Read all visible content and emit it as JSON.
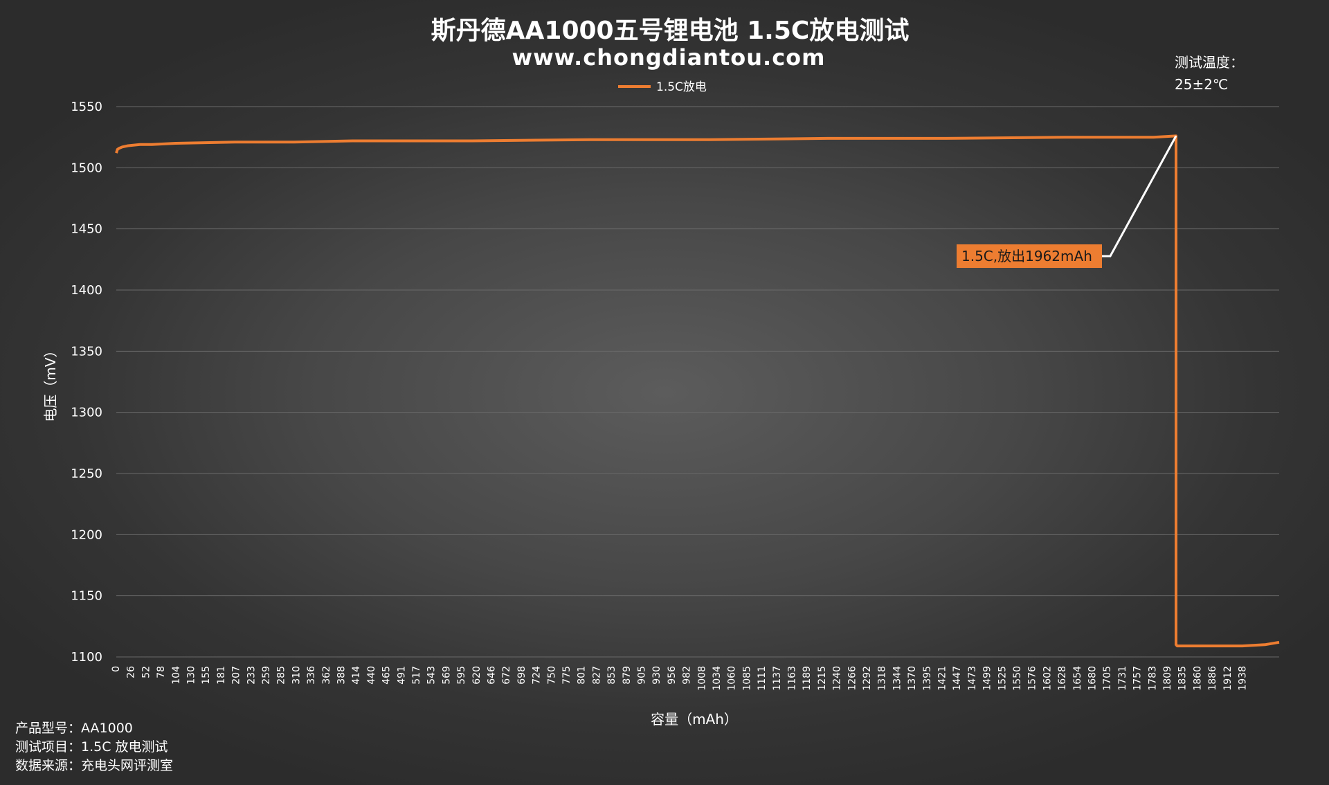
{
  "chart_data": {
    "type": "line",
    "title": "斯丹德AA1000五号锂电池 1.5C放电测试",
    "subtitle": "www.chongdiantou.com",
    "xlabel": "容量（mAh）",
    "ylabel": "电压（mV）",
    "ylim": [
      1100,
      1550
    ],
    "y_ticks": [
      "1550",
      "1500",
      "1450",
      "1400",
      "1350",
      "1300",
      "1250",
      "1200",
      "1150",
      "1100"
    ],
    "x_ticks": [
      "0",
      "26",
      "52",
      "78",
      "104",
      "130",
      "155",
      "181",
      "207",
      "233",
      "259",
      "285",
      "310",
      "336",
      "362",
      "388",
      "414",
      "440",
      "465",
      "491",
      "517",
      "543",
      "569",
      "595",
      "620",
      "646",
      "672",
      "698",
      "724",
      "750",
      "775",
      "801",
      "827",
      "853",
      "879",
      "905",
      "930",
      "956",
      "982",
      "1008",
      "1034",
      "1060",
      "1085",
      "1111",
      "1137",
      "1163",
      "1189",
      "1215",
      "1240",
      "1266",
      "1292",
      "1318",
      "1344",
      "1370",
      "1395",
      "1421",
      "1447",
      "1473",
      "1499",
      "1525",
      "1550",
      "1576",
      "1602",
      "1628",
      "1654",
      "1680",
      "1705",
      "1731",
      "1757",
      "1783",
      "1809",
      "1835",
      "1860",
      "1886",
      "1912",
      "1938"
    ],
    "xlim": [
      0,
      1962
    ],
    "grid": true,
    "legend_position": "top-center",
    "series": [
      {
        "name": "1.5C放电",
        "color": "#ed7d31",
        "x": [
          0,
          2,
          5,
          10,
          20,
          40,
          60,
          100,
          200,
          300,
          400,
          600,
          800,
          1000,
          1200,
          1400,
          1600,
          1700,
          1750,
          1788,
          1788,
          1790,
          1800,
          1850,
          1900,
          1938,
          1962
        ],
        "y": [
          1512,
          1515,
          1516,
          1517,
          1518,
          1519,
          1519,
          1520,
          1521,
          1521,
          1522,
          1522,
          1523,
          1523,
          1524,
          1524,
          1525,
          1525,
          1525,
          1526,
          1110,
          1109,
          1109,
          1109,
          1109,
          1110,
          1112
        ]
      }
    ],
    "annotations": [
      {
        "text": "1.5C,放出1962mAh",
        "x": 1788,
        "y": 1526,
        "box_color": "#ed7d31"
      }
    ]
  },
  "notes": {
    "temperature_label": "测试温度：",
    "temperature_value": "25±2℃"
  },
  "info": {
    "line1": "产品型号：AA1000",
    "line2": "测试项目：1.5C 放电测试",
    "line3": "数据来源：充电头网评测室"
  },
  "colors": {
    "line": "#ed7d31",
    "grid": "#6a6a6a",
    "leader_line": "#ffffff"
  }
}
